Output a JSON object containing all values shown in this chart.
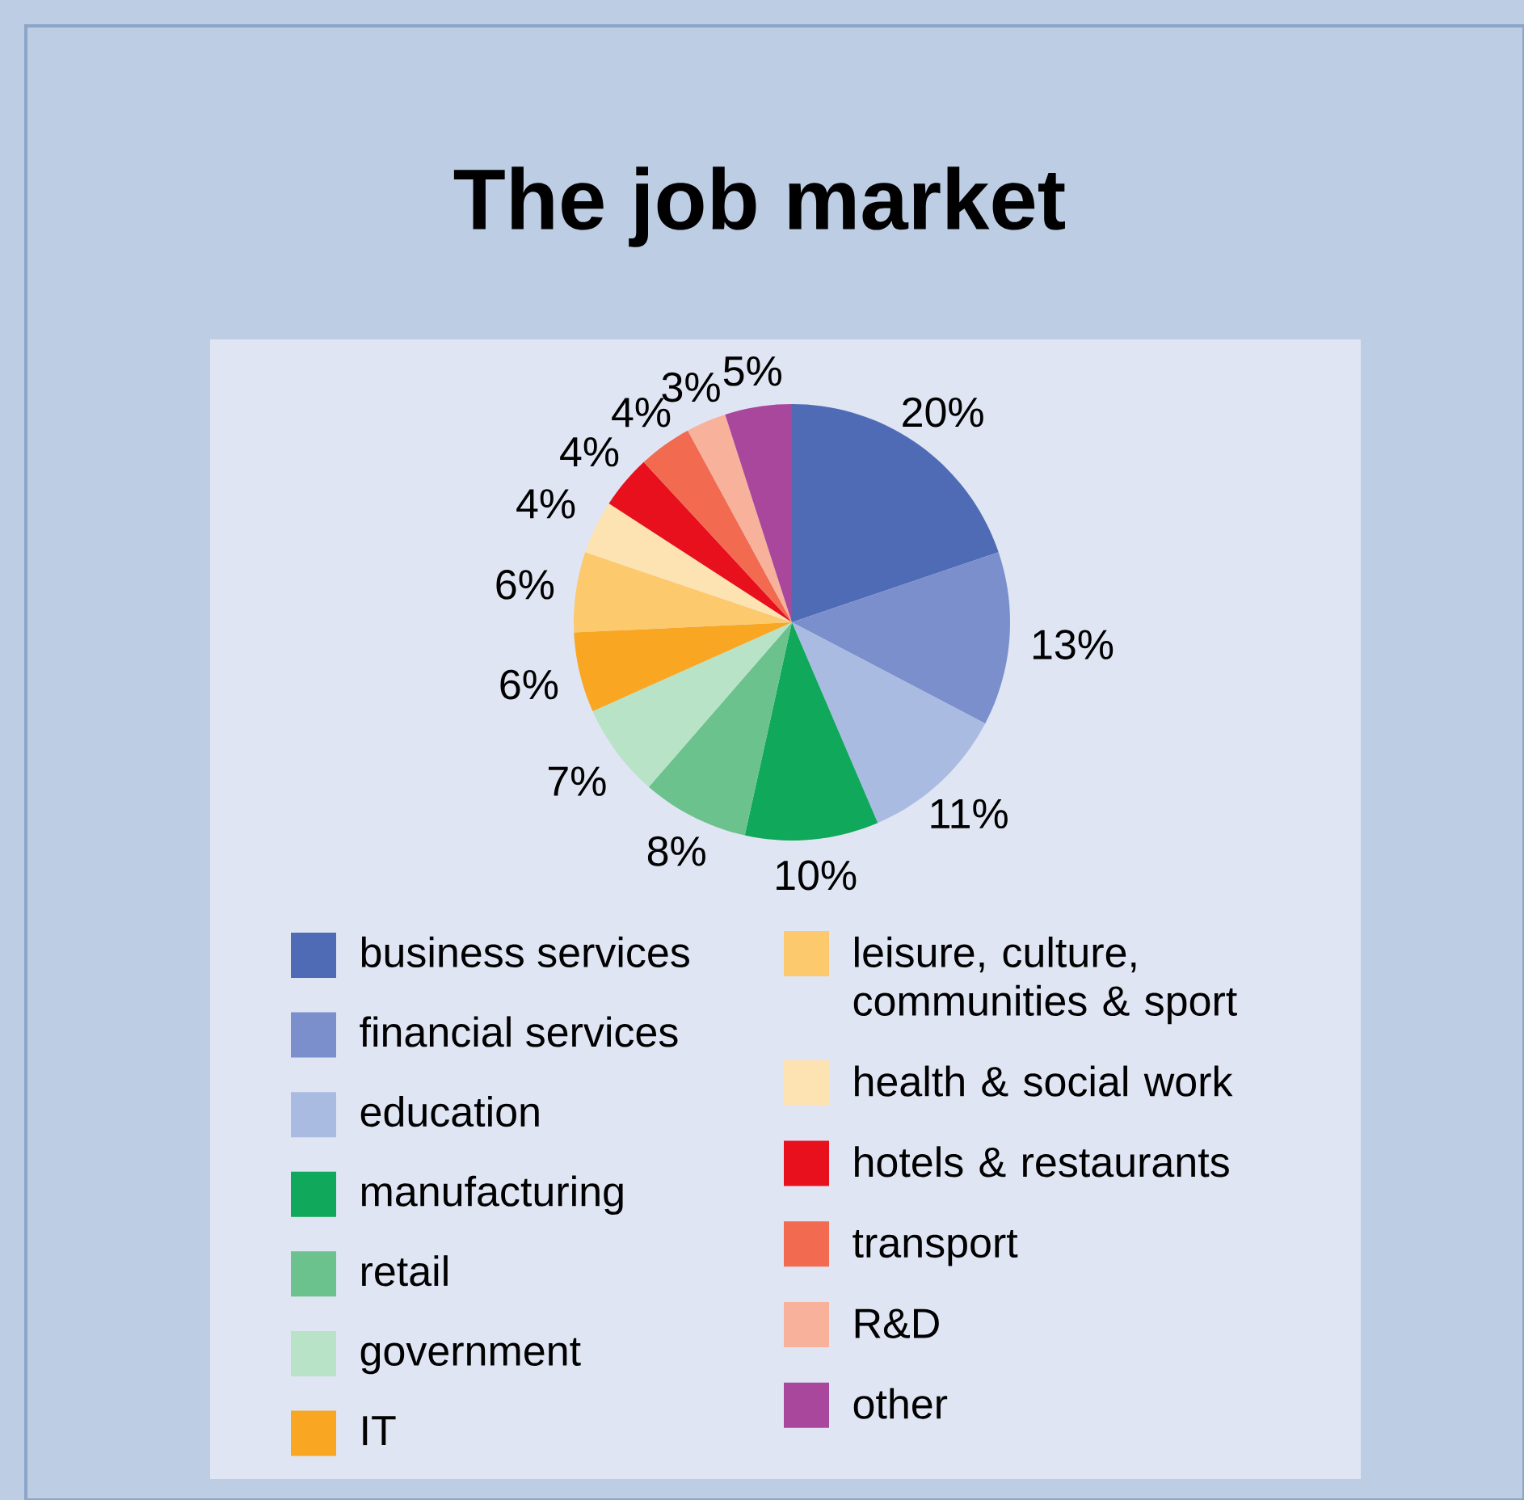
{
  "chart_data": {
    "type": "pie",
    "title": "The job market",
    "categories": [
      "business services",
      "financial services",
      "education",
      "manufacturing",
      "retail",
      "government",
      "IT",
      "leisure, culture, communities & sport",
      "health & social work",
      "hotels & restaurants",
      "transport",
      "R&D",
      "other"
    ],
    "values": [
      20,
      13,
      11,
      10,
      8,
      7,
      6,
      6,
      4,
      4,
      4,
      3,
      5
    ],
    "value_labels": [
      "20%",
      "13%",
      "11%",
      "10%",
      "8%",
      "7%",
      "6%",
      "6%",
      "4%",
      "4%",
      "4%",
      "3%",
      "5%"
    ],
    "colors": [
      "#4f6bb5",
      "#7b8fcd",
      "#aabbe2",
      "#10a85a",
      "#6cc28c",
      "#b8e3c6",
      "#f9a623",
      "#fcc96c",
      "#fde3b2",
      "#e8101c",
      "#f26a50",
      "#f8b19b",
      "#a8479b"
    ],
    "legend": "bottom"
  }
}
